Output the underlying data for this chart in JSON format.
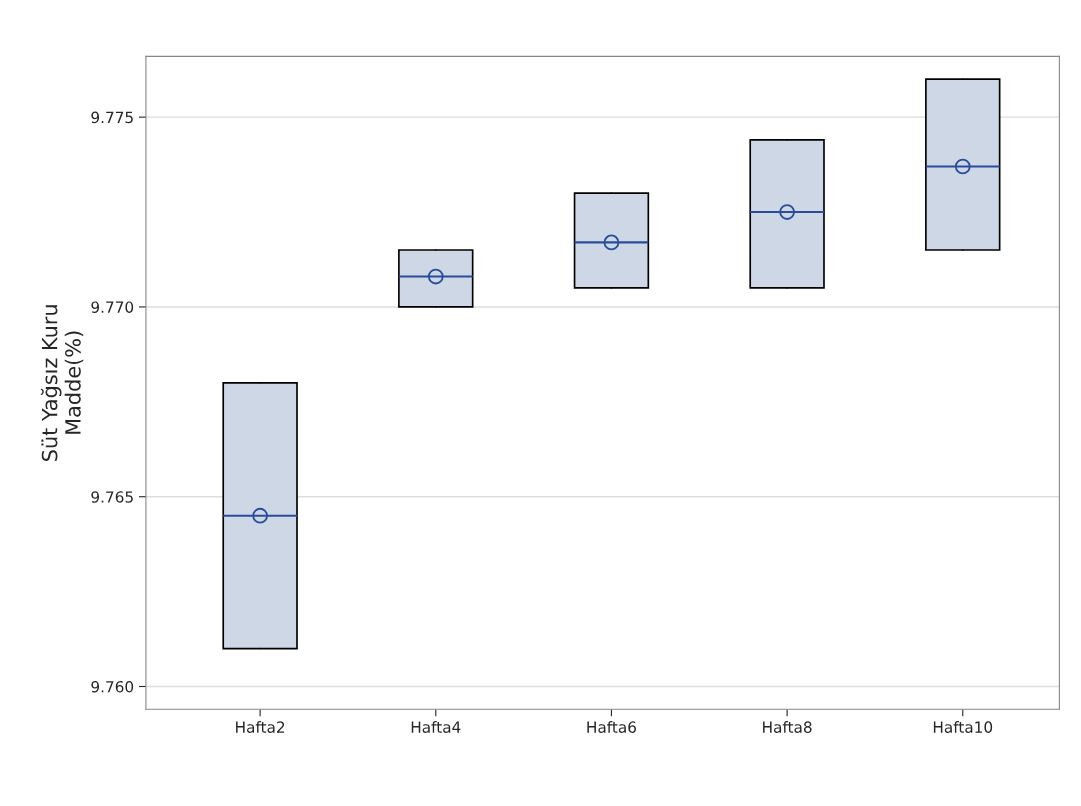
{
  "chart_data": {
    "type": "box",
    "ylabel": "Süt Yağsız Kuru\nMadde(%)",
    "categories": [
      "Hafta2",
      "Hafta4",
      "Hafta6",
      "Hafta8",
      "Hafta10"
    ],
    "boxes": [
      {
        "low": 9.761,
        "q1": 9.761,
        "median": 9.7645,
        "q3": 9.768,
        "high": 9.768,
        "mean": 9.7645
      },
      {
        "low": 9.77,
        "q1": 9.77,
        "median": 9.7708,
        "q3": 9.7715,
        "high": 9.7715,
        "mean": 9.7708
      },
      {
        "low": 9.7705,
        "q1": 9.7705,
        "median": 9.7717,
        "q3": 9.773,
        "high": 9.773,
        "mean": 9.7717
      },
      {
        "low": 9.7705,
        "q1": 9.7705,
        "median": 9.7725,
        "q3": 9.7744,
        "high": 9.7744,
        "mean": 9.7725
      },
      {
        "low": 9.7715,
        "q1": 9.7715,
        "median": 9.7737,
        "q3": 9.776,
        "high": 9.776,
        "mean": 9.7737
      }
    ],
    "color": "#cdd7e6",
    "marker": "circle",
    "ylim": [
      9.7594,
      9.7766
    ],
    "yticks": [
      {
        "value": 9.76,
        "label": "9.760"
      },
      {
        "value": 9.765,
        "label": "9.765"
      },
      {
        "value": 9.77,
        "label": "9.770"
      },
      {
        "value": 9.775,
        "label": "9.775"
      }
    ],
    "grid": "y",
    "legend": false
  }
}
